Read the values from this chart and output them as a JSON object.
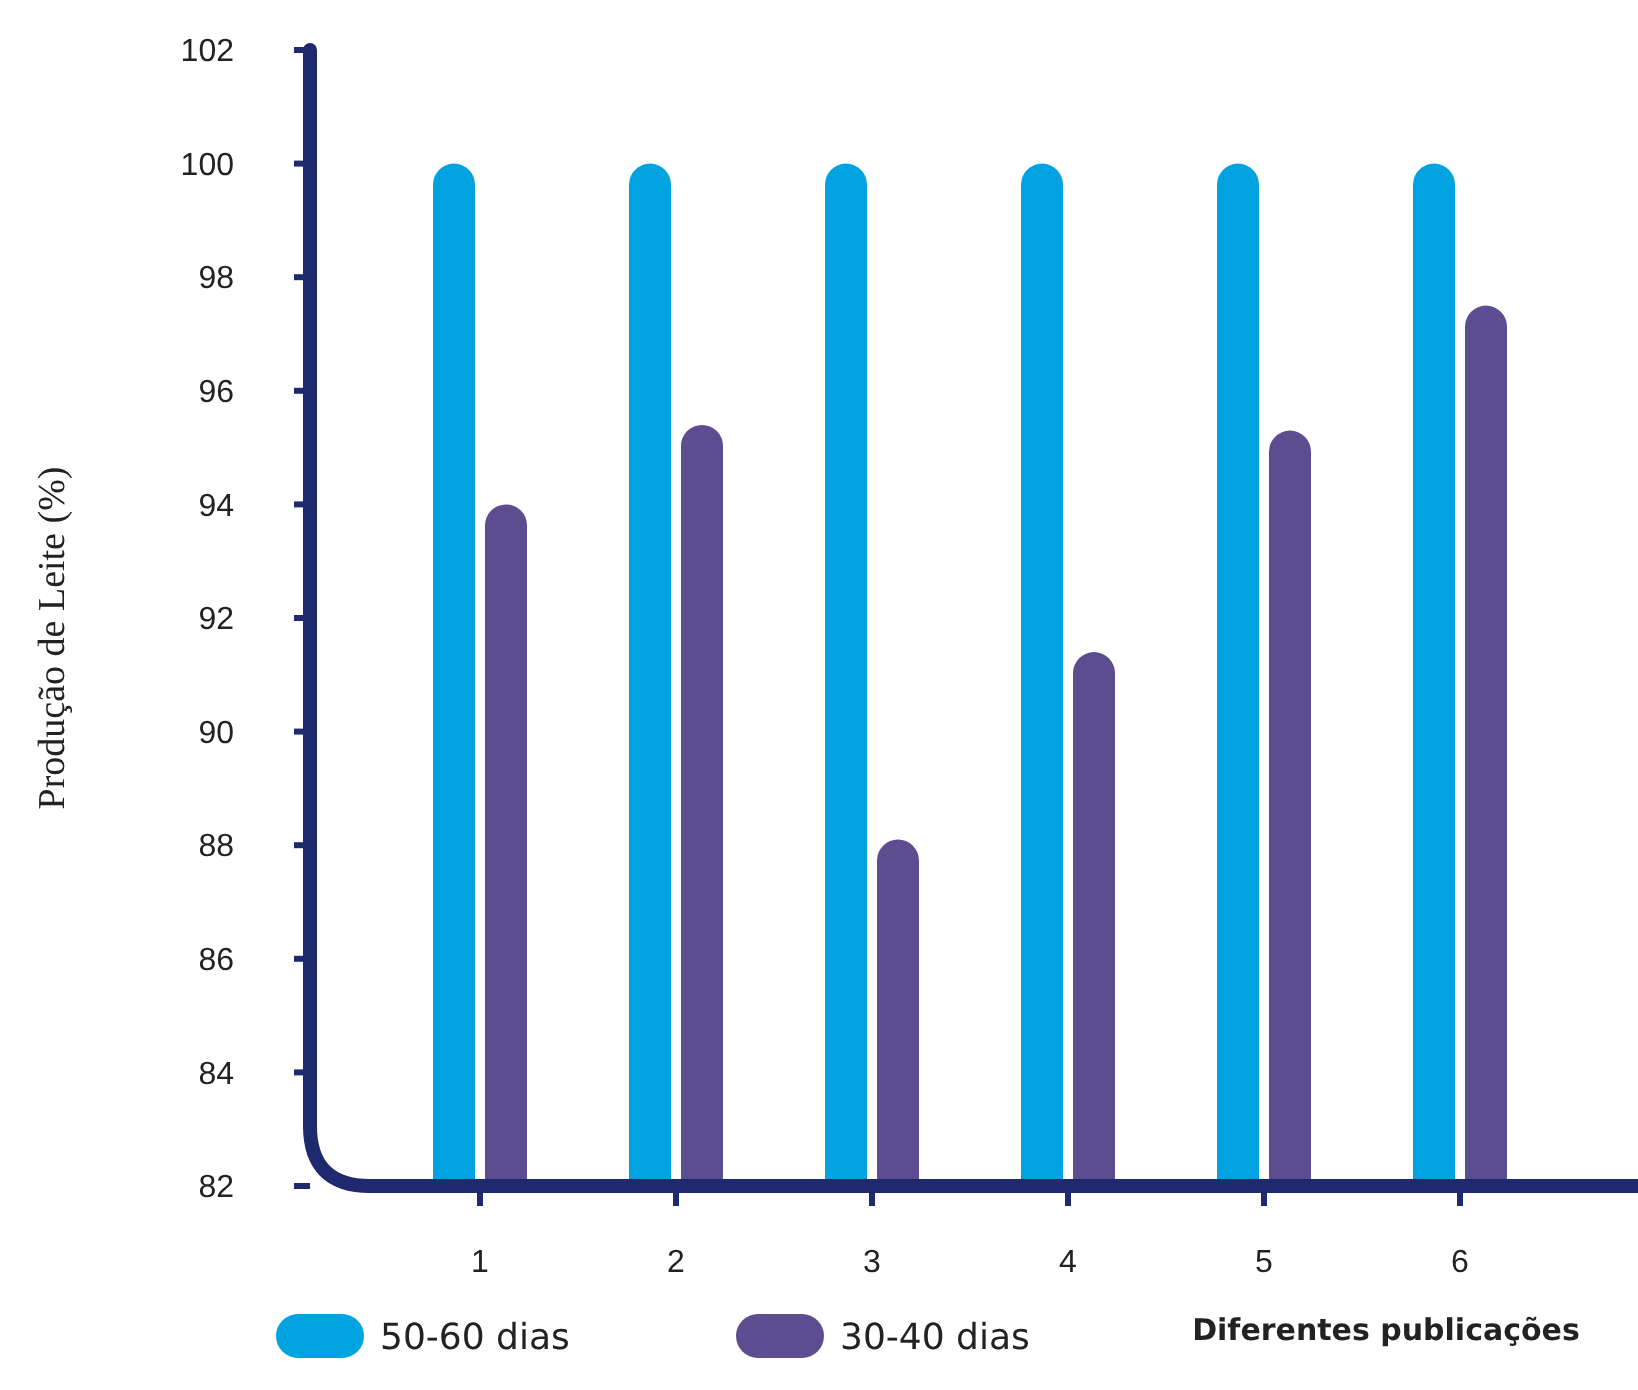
{
  "chart_data": {
    "type": "bar",
    "xlabel": "Diferentes publicações",
    "ylabel": "Produção de Leite (%)",
    "categories": [
      "1",
      "2",
      "3",
      "4",
      "5",
      "6"
    ],
    "series": [
      {
        "name": "50-60 dias",
        "color": "#00a3e0",
        "values": [
          100,
          100,
          100,
          100,
          100,
          100
        ]
      },
      {
        "name": "30-40 dias",
        "color": "#5b4d8f",
        "values": [
          94,
          95.4,
          88.1,
          91.4,
          95.3,
          97.5
        ]
      }
    ],
    "ylim": [
      82,
      102
    ],
    "yticks": [
      82,
      84,
      86,
      88,
      90,
      92,
      94,
      96,
      98,
      100,
      102
    ],
    "grid": false,
    "legend": "bottom left"
  }
}
